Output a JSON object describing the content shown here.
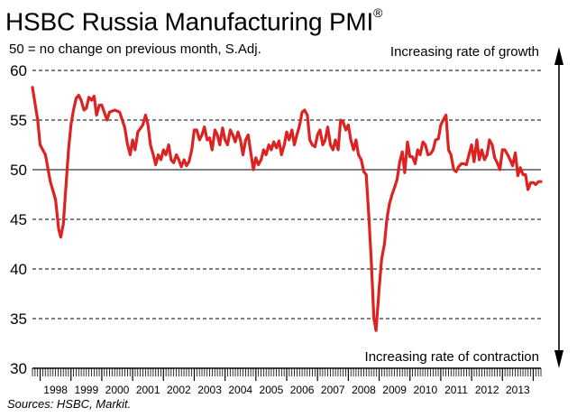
{
  "title": "HSBC Russia Manufacturing PMI",
  "title_mark": "®",
  "subtitle": "50 = no change on previous month, S.Adj.",
  "source": "Sources: HSBC, Markit.",
  "colors": {
    "line": "#dd2222",
    "grid": "#000000"
  },
  "chart_data": {
    "type": "line",
    "title": "HSBC Russia Manufacturing PMI",
    "xlabel": "",
    "ylabel": "",
    "ylim": [
      30,
      60
    ],
    "yticks": [
      30,
      35,
      40,
      45,
      50,
      55,
      60
    ],
    "year_labels": [
      "1998",
      "1999",
      "2000",
      "2001",
      "2002",
      "2003",
      "2004",
      "2005",
      "2006",
      "2007",
      "2008",
      "2009",
      "2010",
      "2011",
      "2012",
      "2013"
    ],
    "annotations": {
      "top": "Increasing rate of growth",
      "bottom": "Increasing rate of contraction"
    },
    "reference_line": 50,
    "series": [
      {
        "name": "HSBC Russia Manufacturing PMI",
        "points": [
          [
            1997.75,
            58.3
          ],
          [
            1997.92,
            55.0
          ],
          [
            1998.0,
            52.5
          ],
          [
            1998.17,
            51.5
          ],
          [
            1998.33,
            48.8
          ],
          [
            1998.5,
            47.0
          ],
          [
            1998.6,
            44.0
          ],
          [
            1998.67,
            43.2
          ],
          [
            1998.75,
            44.5
          ],
          [
            1998.83,
            48.0
          ],
          [
            1998.92,
            52.0
          ],
          [
            1999.0,
            54.5
          ],
          [
            1999.08,
            56.0
          ],
          [
            1999.17,
            57.2
          ],
          [
            1999.25,
            57.5
          ],
          [
            1999.33,
            57.0
          ],
          [
            1999.42,
            56.0
          ],
          [
            1999.5,
            56.2
          ],
          [
            1999.58,
            57.3
          ],
          [
            1999.67,
            57.0
          ],
          [
            1999.75,
            57.4
          ],
          [
            1999.83,
            55.5
          ],
          [
            1999.92,
            56.5
          ],
          [
            2000.0,
            56.5
          ],
          [
            2000.17,
            55.0
          ],
          [
            2000.25,
            55.8
          ],
          [
            2000.42,
            56.0
          ],
          [
            2000.58,
            55.8
          ],
          [
            2000.75,
            54.2
          ],
          [
            2000.83,
            52.6
          ],
          [
            2000.92,
            51.5
          ],
          [
            2001.0,
            53.0
          ],
          [
            2001.08,
            52.0
          ],
          [
            2001.17,
            53.8
          ],
          [
            2001.33,
            54.5
          ],
          [
            2001.42,
            55.5
          ],
          [
            2001.5,
            54.5
          ],
          [
            2001.58,
            52.5
          ],
          [
            2001.67,
            51.5
          ],
          [
            2001.75,
            50.5
          ],
          [
            2001.83,
            51.5
          ],
          [
            2001.92,
            51.0
          ],
          [
            2002.0,
            52.0
          ],
          [
            2002.08,
            51.5
          ],
          [
            2002.17,
            52.5
          ],
          [
            2002.25,
            51.0
          ],
          [
            2002.33,
            50.7
          ],
          [
            2002.42,
            51.5
          ],
          [
            2002.5,
            51.0
          ],
          [
            2002.58,
            50.3
          ],
          [
            2002.67,
            51.0
          ],
          [
            2002.75,
            50.4
          ],
          [
            2002.83,
            50.8
          ],
          [
            2002.92,
            52.0
          ],
          [
            2003.0,
            54.0
          ],
          [
            2003.08,
            54.0
          ],
          [
            2003.17,
            53.0
          ],
          [
            2003.25,
            53.5
          ],
          [
            2003.33,
            54.3
          ],
          [
            2003.42,
            53.0
          ],
          [
            2003.5,
            53.2
          ],
          [
            2003.58,
            52.0
          ],
          [
            2003.67,
            54.0
          ],
          [
            2003.75,
            53.5
          ],
          [
            2003.83,
            52.5
          ],
          [
            2003.92,
            54.2
          ],
          [
            2004.0,
            53.0
          ],
          [
            2004.08,
            52.5
          ],
          [
            2004.17,
            54.0
          ],
          [
            2004.25,
            53.5
          ],
          [
            2004.33,
            52.8
          ],
          [
            2004.42,
            53.8
          ],
          [
            2004.5,
            53.0
          ],
          [
            2004.58,
            51.5
          ],
          [
            2004.67,
            53.0
          ],
          [
            2004.75,
            53.5
          ],
          [
            2004.83,
            51.8
          ],
          [
            2004.92,
            50.0
          ],
          [
            2005.0,
            51.2
          ],
          [
            2005.08,
            50.5
          ],
          [
            2005.17,
            51.0
          ],
          [
            2005.25,
            52.0
          ],
          [
            2005.33,
            51.5
          ],
          [
            2005.42,
            52.5
          ],
          [
            2005.5,
            52.0
          ],
          [
            2005.58,
            52.8
          ],
          [
            2005.67,
            52.2
          ],
          [
            2005.75,
            52.9
          ],
          [
            2005.83,
            51.5
          ],
          [
            2005.92,
            52.5
          ],
          [
            2006.0,
            53.8
          ],
          [
            2006.08,
            53.0
          ],
          [
            2006.17,
            54.0
          ],
          [
            2006.25,
            52.5
          ],
          [
            2006.33,
            53.5
          ],
          [
            2006.42,
            54.5
          ],
          [
            2006.5,
            55.8
          ],
          [
            2006.58,
            56.0
          ],
          [
            2006.67,
            55.5
          ],
          [
            2006.75,
            53.0
          ],
          [
            2006.83,
            52.5
          ],
          [
            2006.92,
            52.3
          ],
          [
            2007.0,
            53.5
          ],
          [
            2007.08,
            54.0
          ],
          [
            2007.17,
            52.5
          ],
          [
            2007.25,
            53.0
          ],
          [
            2007.33,
            54.3
          ],
          [
            2007.42,
            52.5
          ],
          [
            2007.5,
            52.0
          ],
          [
            2007.58,
            53.0
          ],
          [
            2007.67,
            52.0
          ],
          [
            2007.75,
            55.0
          ],
          [
            2007.83,
            54.8
          ],
          [
            2007.92,
            54.0
          ],
          [
            2008.0,
            54.5
          ],
          [
            2008.08,
            53.0
          ],
          [
            2008.17,
            52.0
          ],
          [
            2008.25,
            53.0
          ],
          [
            2008.33,
            51.5
          ],
          [
            2008.42,
            51.0
          ],
          [
            2008.5,
            49.8
          ],
          [
            2008.58,
            49.5
          ],
          [
            2008.67,
            45.0
          ],
          [
            2008.75,
            40.5
          ],
          [
            2008.83,
            35.0
          ],
          [
            2008.9,
            33.8
          ],
          [
            2009.0,
            38.0
          ],
          [
            2009.08,
            41.0
          ],
          [
            2009.17,
            42.5
          ],
          [
            2009.25,
            45.0
          ],
          [
            2009.33,
            46.5
          ],
          [
            2009.42,
            47.5
          ],
          [
            2009.5,
            48.2
          ],
          [
            2009.58,
            49.0
          ],
          [
            2009.67,
            50.8
          ],
          [
            2009.75,
            51.8
          ],
          [
            2009.83,
            49.7
          ],
          [
            2009.92,
            52.8
          ],
          [
            2010.0,
            51.3
          ],
          [
            2010.08,
            51.3
          ],
          [
            2010.17,
            50.6
          ],
          [
            2010.25,
            52.0
          ],
          [
            2010.33,
            51.5
          ],
          [
            2010.42,
            52.8
          ],
          [
            2010.5,
            52.5
          ],
          [
            2010.58,
            51.5
          ],
          [
            2010.67,
            51.6
          ],
          [
            2010.75,
            52.0
          ],
          [
            2010.83,
            53.0
          ],
          [
            2010.92,
            53.1
          ],
          [
            2011.0,
            54.5
          ],
          [
            2011.08,
            55.0
          ],
          [
            2011.17,
            55.5
          ],
          [
            2011.25,
            52.0
          ],
          [
            2011.33,
            51.5
          ],
          [
            2011.42,
            50.0
          ],
          [
            2011.5,
            49.8
          ],
          [
            2011.58,
            50.3
          ],
          [
            2011.67,
            50.6
          ],
          [
            2011.75,
            50.6
          ],
          [
            2011.83,
            50.5
          ],
          [
            2011.92,
            51.6
          ],
          [
            2012.0,
            52.5
          ],
          [
            2012.08,
            50.8
          ],
          [
            2012.17,
            53.0
          ],
          [
            2012.25,
            51.0
          ],
          [
            2012.33,
            52.0
          ],
          [
            2012.42,
            51.0
          ],
          [
            2012.5,
            51.5
          ],
          [
            2012.58,
            53.0
          ],
          [
            2012.67,
            52.5
          ],
          [
            2012.75,
            51.2
          ],
          [
            2012.83,
            50.7
          ],
          [
            2012.92,
            50.0
          ],
          [
            2013.0,
            52.0
          ],
          [
            2013.08,
            52.0
          ],
          [
            2013.17,
            51.5
          ],
          [
            2013.25,
            51.0
          ],
          [
            2013.33,
            50.4
          ],
          [
            2013.42,
            51.7
          ],
          [
            2013.5,
            49.4
          ],
          [
            2013.58,
            50.2
          ],
          [
            2013.67,
            49.5
          ],
          [
            2013.75,
            49.5
          ],
          [
            2013.83,
            48.0
          ],
          [
            2013.92,
            48.7
          ],
          [
            2014.0,
            48.7
          ],
          [
            2014.08,
            48.5
          ],
          [
            2014.17,
            48.8
          ],
          [
            2014.25,
            48.8
          ]
        ]
      }
    ]
  }
}
